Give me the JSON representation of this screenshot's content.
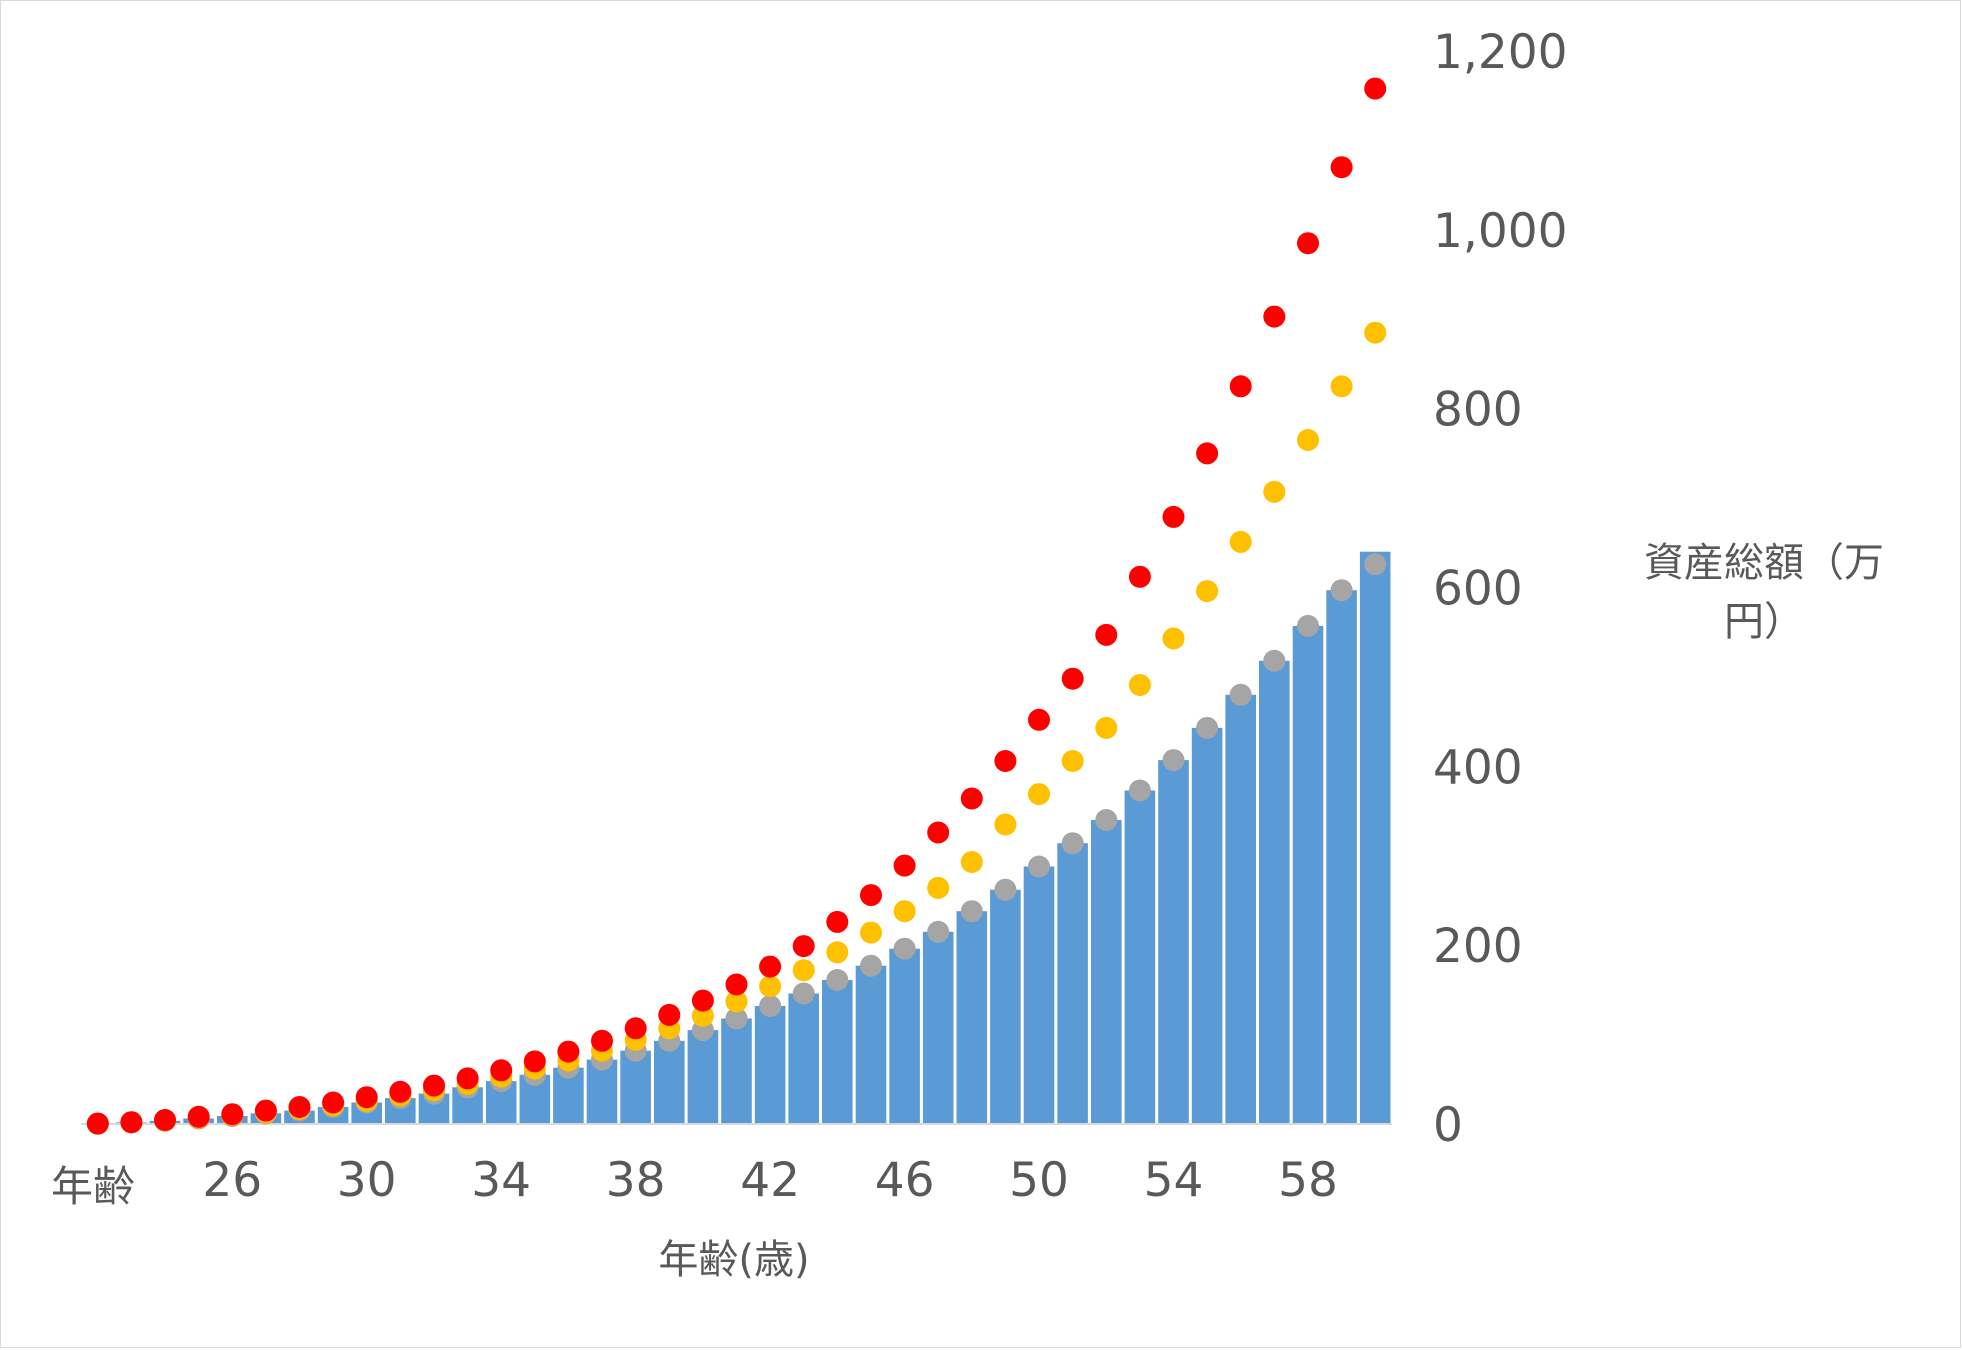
{
  "chart_data": {
    "type": "bar",
    "xlabel": "年齢(歳)",
    "ylabel": "資産総額（万円）",
    "ylabel_lines": [
      "資産総額（万",
      "円）"
    ],
    "x_first_tick_label": "年齢",
    "x_tick_labels": [
      "26",
      "30",
      "34",
      "38",
      "42",
      "46",
      "50",
      "54",
      "58"
    ],
    "y_tick_labels": [
      "0",
      "200",
      "400",
      "600",
      "800",
      "1,000",
      "1,200"
    ],
    "ylim": [
      0,
      1200
    ],
    "y_axis_position": "right",
    "grid": false,
    "legend": "none",
    "categories": [
      22,
      23,
      24,
      25,
      26,
      27,
      28,
      29,
      30,
      31,
      32,
      33,
      34,
      35,
      36,
      37,
      38,
      39,
      40,
      41,
      42,
      43,
      44,
      45,
      46,
      47,
      48,
      49,
      50,
      51,
      52,
      53,
      54,
      55,
      56,
      57,
      58,
      59,
      60
    ],
    "bar_color": "#5b9bd5",
    "series": [
      {
        "mark": "bar",
        "color": "#5b9bd5",
        "values": [
          0.4,
          1.8,
          3.6,
          6.2,
          9,
          12,
          15,
          19,
          24,
          29,
          34,
          41,
          48,
          55,
          63,
          72,
          82,
          93,
          105,
          118,
          132,
          146,
          161,
          177,
          196,
          215,
          238,
          262,
          288,
          314,
          340,
          373,
          407,
          443,
          480,
          518,
          557,
          597,
          640
        ]
      },
      {
        "mark": "dot",
        "color": "#a5a5a5",
        "values": [
          0.4,
          1.8,
          3.6,
          6.2,
          9,
          12,
          15,
          19,
          24,
          29,
          34,
          41,
          48,
          55,
          63,
          72,
          82,
          93,
          105,
          118,
          132,
          146,
          161,
          177,
          196,
          215,
          238,
          262,
          288,
          314,
          340,
          373,
          407,
          443,
          480,
          518,
          557,
          597,
          626
        ]
      },
      {
        "mark": "dot",
        "color": "#ffc000",
        "values": [
          0.5,
          2,
          4,
          7,
          10,
          13,
          17,
          21,
          26,
          32,
          38,
          45,
          53,
          62,
          71,
          82,
          94,
          107,
          121,
          137,
          154,
          172,
          192,
          214,
          238,
          264,
          293,
          335,
          369,
          406,
          443,
          491,
          543,
          596,
          651,
          707,
          765,
          825,
          885
        ]
      },
      {
        "mark": "dot",
        "color": "#ff0000",
        "values": [
          0.5,
          2,
          4.5,
          8,
          11,
          15,
          19,
          24,
          30,
          36,
          43,
          51,
          60,
          70,
          81,
          93,
          107,
          122,
          138,
          156,
          176,
          199,
          226,
          256,
          289,
          326,
          364,
          406,
          452,
          498,
          547,
          612,
          679,
          750,
          825,
          903,
          985,
          1070,
          1158
        ]
      }
    ]
  }
}
